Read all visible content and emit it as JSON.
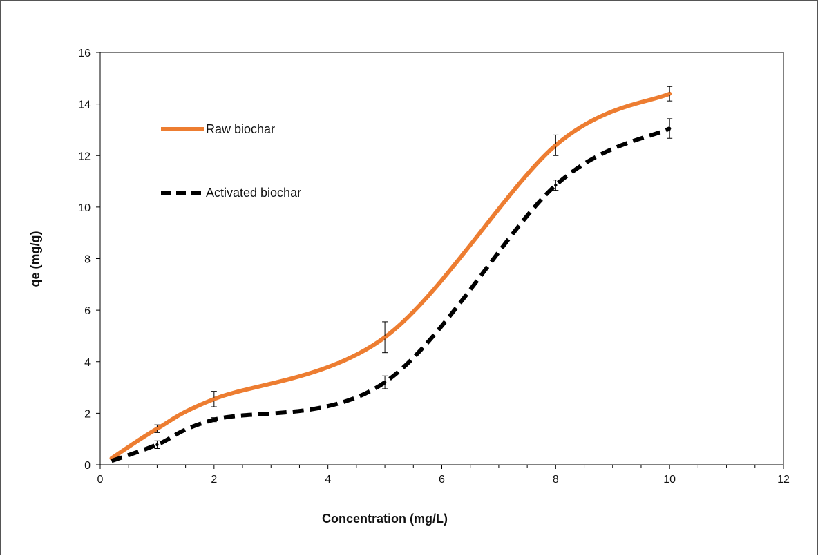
{
  "chart_data": {
    "type": "line",
    "title": "",
    "xlabel": "Concentration (mg/L)",
    "ylabel": "qe (mg/g)",
    "xlim": [
      0,
      12
    ],
    "ylim": [
      0,
      16
    ],
    "x_ticks": [
      0,
      2,
      4,
      6,
      8,
      10,
      12
    ],
    "y_ticks": [
      0,
      2,
      4,
      6,
      8,
      10,
      12,
      14,
      16
    ],
    "grid": false,
    "legend": "top-left",
    "x": [
      0.2,
      1,
      2,
      5,
      8,
      10
    ],
    "series": [
      {
        "name": "Raw biochar",
        "color": "#ED7D31",
        "style": "solid",
        "values": [
          0.25,
          1.4,
          2.55,
          4.95,
          12.4,
          14.4
        ],
        "error": [
          0,
          0.15,
          0.3,
          0.6,
          0.4,
          0.28
        ]
      },
      {
        "name": "Activated biochar",
        "color": "#000000",
        "style": "dashed",
        "values": [
          0.15,
          0.78,
          1.75,
          3.2,
          10.85,
          13.05
        ],
        "error": [
          0,
          0.15,
          0.08,
          0.25,
          0.2,
          0.38
        ]
      }
    ]
  }
}
